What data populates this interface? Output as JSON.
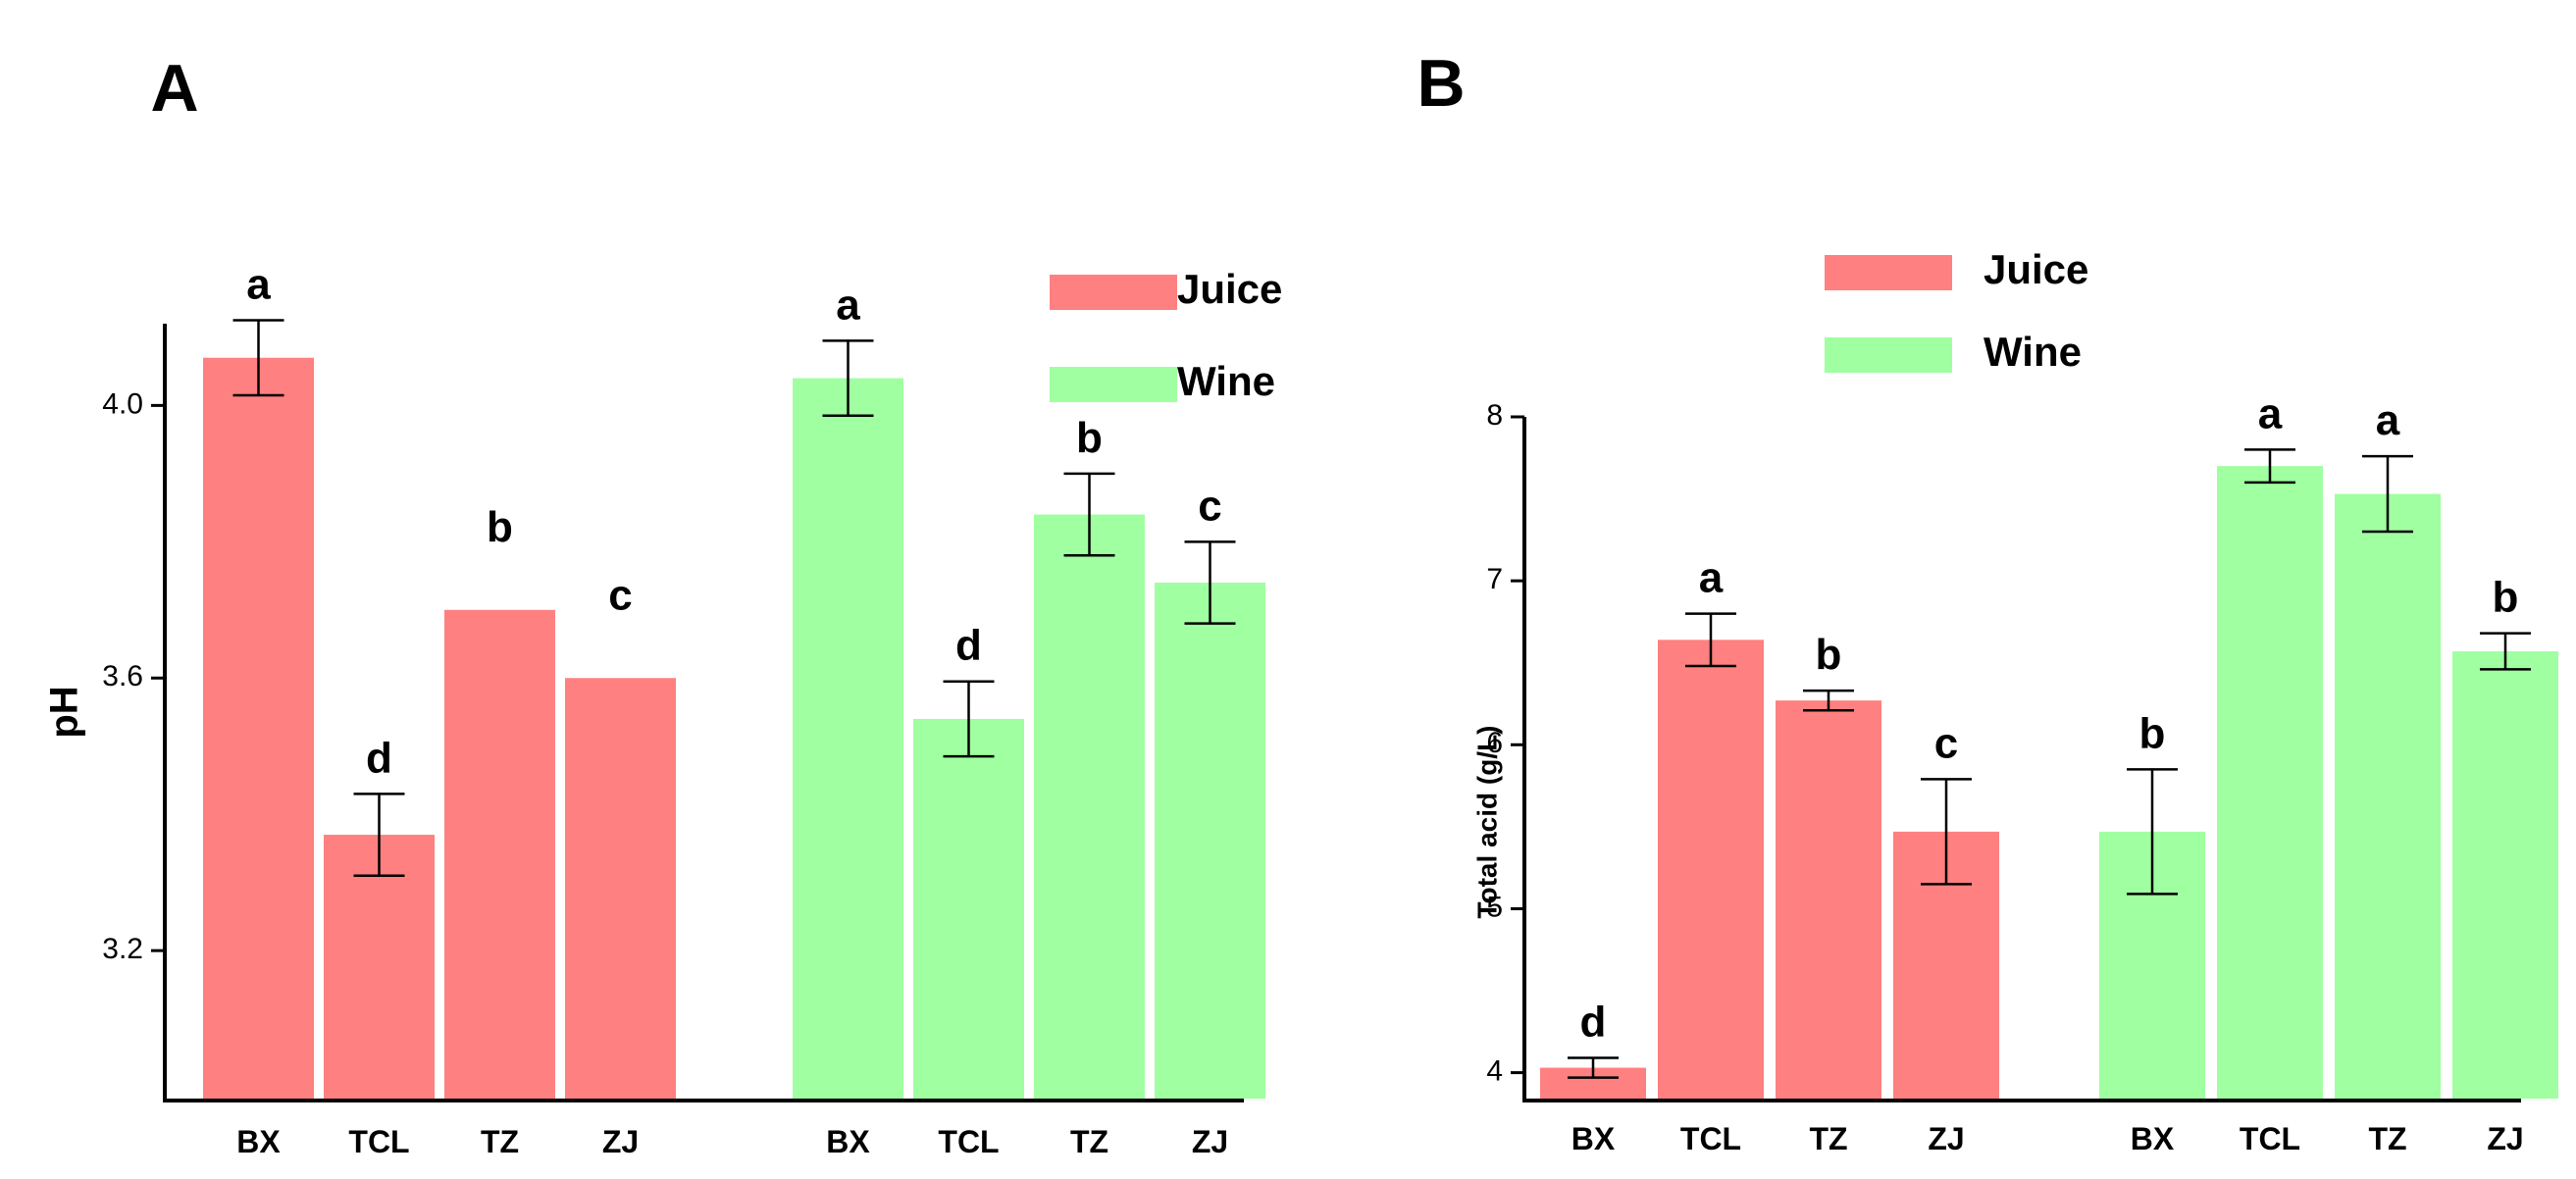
{
  "colors": {
    "juice": "#ff8080",
    "wine": "#a0ffa0",
    "axis": "#000000"
  },
  "chart_data": [
    {
      "panel": "A",
      "type": "bar",
      "ylabel": "pH",
      "ylim": [
        2.98,
        4.12
      ],
      "ticks": [
        3.2,
        3.6,
        4.0
      ],
      "tick_labels": [
        "3.2",
        "3.6",
        "4.0"
      ],
      "legend": [
        "Juice",
        "Wine"
      ],
      "legend_position": "top-right",
      "groups": [
        {
          "name": "Juice",
          "categories": [
            "BX",
            "TCL",
            "TZ",
            "ZJ"
          ],
          "values": [
            4.07,
            3.37,
            3.7,
            3.6
          ],
          "errors": [
            0.055,
            0.06,
            0,
            0
          ],
          "letters": [
            "a",
            "d",
            "b",
            "c"
          ]
        },
        {
          "name": "Wine",
          "categories": [
            "BX",
            "TCL",
            "TZ",
            "ZJ"
          ],
          "values": [
            4.04,
            3.54,
            3.84,
            3.74
          ],
          "errors": [
            0.055,
            0.055,
            0.06,
            0.06
          ],
          "letters": [
            "a",
            "d",
            "b",
            "c"
          ]
        }
      ]
    },
    {
      "panel": "B",
      "type": "bar",
      "ylabel": "Total acid (g/L)",
      "ylim": [
        3.83,
        8.0
      ],
      "ticks": [
        4,
        5,
        6,
        7,
        8
      ],
      "tick_labels": [
        "4",
        "5",
        "6",
        "7",
        "8"
      ],
      "legend": [
        "Juice",
        "Wine"
      ],
      "legend_position": "top-right",
      "groups": [
        {
          "name": "Juice",
          "categories": [
            "BX",
            "TCL",
            "TZ",
            "ZJ"
          ],
          "values": [
            4.03,
            6.64,
            6.27,
            5.47
          ],
          "errors": [
            0.06,
            0.16,
            0.06,
            0.32
          ],
          "letters": [
            "d",
            "a",
            "b",
            "c"
          ]
        },
        {
          "name": "Wine",
          "categories": [
            "BX",
            "TCL",
            "TZ",
            "ZJ"
          ],
          "values": [
            5.47,
            7.7,
            7.53,
            6.57
          ],
          "errors": [
            0.38,
            0.1,
            0.23,
            0.11
          ],
          "letters": [
            "b",
            "a",
            "a",
            "b"
          ]
        }
      ]
    }
  ]
}
